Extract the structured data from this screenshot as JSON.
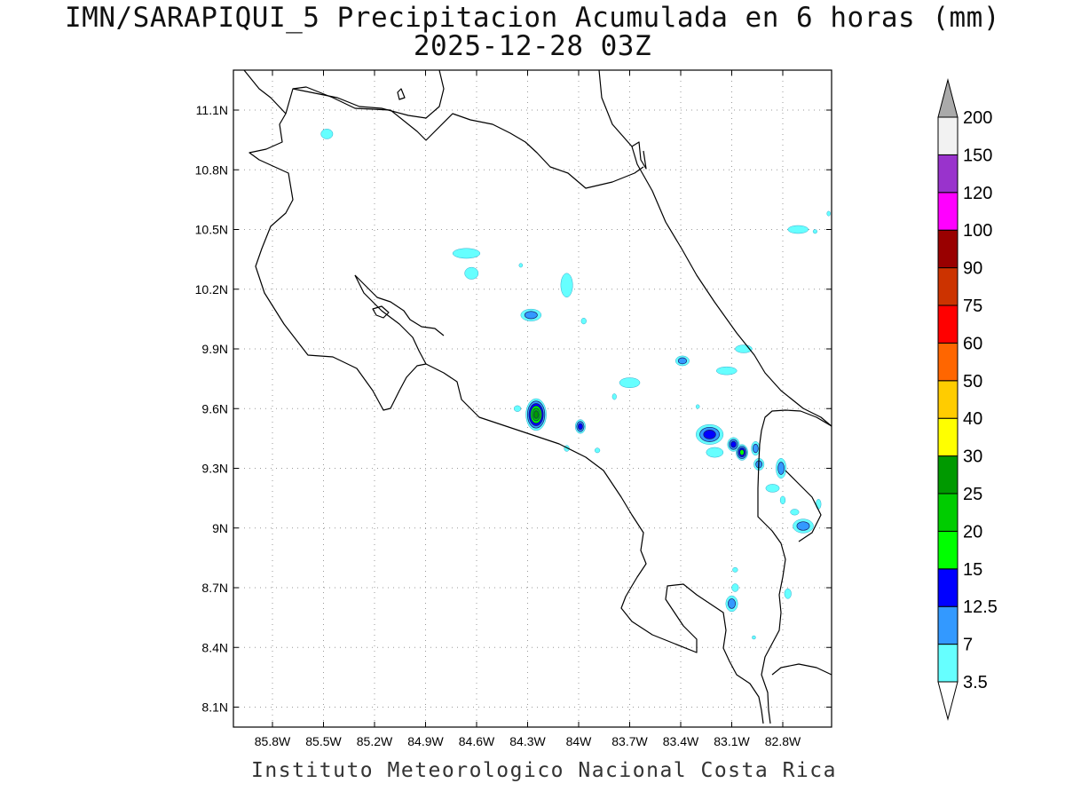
{
  "title": {
    "line1": "IMN/SARAPIQUI_5 Precipitacion Acumulada en 6 horas (mm)",
    "line2": "2025-12-28 03Z"
  },
  "credit": "Instituto Meteorologico Nacional Costa Rica",
  "map": {
    "lon_range": [
      -86.0,
      -83.1
    ],
    "lat_range": [
      8.0,
      11.3
    ],
    "x_ticks": [
      {
        "lon": -85.8,
        "label": "85.8W"
      },
      {
        "lon": -85.5,
        "label": "85.5W"
      },
      {
        "lon": -85.2,
        "label": "85.2W"
      },
      {
        "lon": -84.9,
        "label": "84.9W"
      },
      {
        "lon": -84.6,
        "label": "84.6W"
      },
      {
        "lon": -84.3,
        "label": "84.3W"
      },
      {
        "lon": -84.0,
        "label": "84W"
      },
      {
        "lon": -83.7,
        "label": "83.7W"
      },
      {
        "lon": -83.4,
        "label": "83.4W"
      },
      {
        "lon": -83.1,
        "label": "83.1W"
      },
      {
        "lon": -82.8,
        "label": "82.8W"
      }
    ],
    "y_ticks": [
      {
        "lat": 11.1,
        "label": "11.1N"
      },
      {
        "lat": 10.8,
        "label": "10.8N"
      },
      {
        "lat": 10.5,
        "label": "10.5N"
      },
      {
        "lat": 10.2,
        "label": "10.2N"
      },
      {
        "lat": 9.9,
        "label": "9.9N"
      },
      {
        "lat": 9.6,
        "label": "9.6N"
      },
      {
        "lat": 9.3,
        "label": "9.3N"
      },
      {
        "lat": 9.0,
        "label": "9N"
      },
      {
        "lat": 8.7,
        "label": "8.7N"
      },
      {
        "lat": 8.4,
        "label": "8.4N"
      },
      {
        "lat": 8.1,
        "label": "8.1N"
      }
    ],
    "grid": true
  },
  "colorbar": {
    "labels": [
      "3.5",
      "7",
      "12.5",
      "15",
      "20",
      "25",
      "30",
      "40",
      "50",
      "60",
      "75",
      "90",
      "100",
      "120",
      "150",
      "200"
    ],
    "colors": [
      "#66ffff",
      "#3399ff",
      "#0000ff",
      "#00ff00",
      "#00cc00",
      "#009900",
      "#ffff00",
      "#ffcc00",
      "#ff6600",
      "#ff0000",
      "#cc3300",
      "#990000",
      "#ff00ff",
      "#9933cc",
      "#f2f2f2"
    ],
    "over_color": "#aaaaaa",
    "under_color": "#ffffff"
  },
  "precip_cells": [
    {
      "lon": -85.48,
      "lat": 10.98,
      "rx": 0.035,
      "ry": 0.025,
      "level": 1
    },
    {
      "lon": -84.66,
      "lat": 10.38,
      "rx": 0.08,
      "ry": 0.025,
      "level": 1
    },
    {
      "lon": -84.63,
      "lat": 10.28,
      "rx": 0.04,
      "ry": 0.03,
      "level": 1
    },
    {
      "lon": -84.28,
      "lat": 10.07,
      "rx": 0.06,
      "ry": 0.03,
      "level": 2
    },
    {
      "lon": -84.07,
      "lat": 10.22,
      "rx": 0.035,
      "ry": 0.06,
      "level": 1
    },
    {
      "lon": -83.97,
      "lat": 10.04,
      "rx": 0.015,
      "ry": 0.015,
      "level": 1
    },
    {
      "lon": -84.34,
      "lat": 10.32,
      "rx": 0.01,
      "ry": 0.01,
      "level": 1
    },
    {
      "lon": -84.25,
      "lat": 9.57,
      "rx": 0.06,
      "ry": 0.08,
      "level": 6
    },
    {
      "lon": -84.36,
      "lat": 9.6,
      "rx": 0.02,
      "ry": 0.015,
      "level": 1
    },
    {
      "lon": -84.07,
      "lat": 9.4,
      "rx": 0.015,
      "ry": 0.015,
      "level": 1
    },
    {
      "lon": -83.99,
      "lat": 9.51,
      "rx": 0.03,
      "ry": 0.035,
      "level": 3
    },
    {
      "lon": -83.89,
      "lat": 9.39,
      "rx": 0.015,
      "ry": 0.012,
      "level": 1
    },
    {
      "lon": -83.7,
      "lat": 9.73,
      "rx": 0.06,
      "ry": 0.025,
      "level": 1
    },
    {
      "lon": -83.79,
      "lat": 9.66,
      "rx": 0.012,
      "ry": 0.015,
      "level": 1
    },
    {
      "lon": -83.39,
      "lat": 9.84,
      "rx": 0.04,
      "ry": 0.025,
      "level": 2
    },
    {
      "lon": -83.13,
      "lat": 9.79,
      "rx": 0.06,
      "ry": 0.02,
      "level": 1
    },
    {
      "lon": -83.03,
      "lat": 9.9,
      "rx": 0.05,
      "ry": 0.02,
      "level": 1
    },
    {
      "lon": -83.3,
      "lat": 9.61,
      "rx": 0.01,
      "ry": 0.01,
      "level": 1
    },
    {
      "lon": -83.23,
      "lat": 9.47,
      "rx": 0.08,
      "ry": 0.05,
      "level": 3
    },
    {
      "lon": -83.2,
      "lat": 9.38,
      "rx": 0.05,
      "ry": 0.025,
      "level": 1
    },
    {
      "lon": -83.09,
      "lat": 9.42,
      "rx": 0.035,
      "ry": 0.035,
      "level": 3
    },
    {
      "lon": -83.04,
      "lat": 9.38,
      "rx": 0.035,
      "ry": 0.04,
      "level": 4
    },
    {
      "lon": -82.96,
      "lat": 9.4,
      "rx": 0.025,
      "ry": 0.035,
      "level": 2
    },
    {
      "lon": -82.94,
      "lat": 9.32,
      "rx": 0.03,
      "ry": 0.03,
      "level": 2
    },
    {
      "lon": -82.81,
      "lat": 9.3,
      "rx": 0.03,
      "ry": 0.05,
      "level": 2
    },
    {
      "lon": -82.86,
      "lat": 9.2,
      "rx": 0.04,
      "ry": 0.02,
      "level": 1
    },
    {
      "lon": -82.8,
      "lat": 9.14,
      "rx": 0.015,
      "ry": 0.02,
      "level": 1
    },
    {
      "lon": -82.73,
      "lat": 9.08,
      "rx": 0.025,
      "ry": 0.015,
      "level": 1
    },
    {
      "lon": -82.68,
      "lat": 9.01,
      "rx": 0.06,
      "ry": 0.035,
      "level": 2
    },
    {
      "lon": -82.59,
      "lat": 9.12,
      "rx": 0.015,
      "ry": 0.025,
      "level": 1
    },
    {
      "lon": -83.1,
      "lat": 8.62,
      "rx": 0.035,
      "ry": 0.04,
      "level": 2
    },
    {
      "lon": -83.08,
      "lat": 8.7,
      "rx": 0.02,
      "ry": 0.02,
      "level": 1
    },
    {
      "lon": -83.08,
      "lat": 8.79,
      "rx": 0.015,
      "ry": 0.012,
      "level": 1
    },
    {
      "lon": -82.77,
      "lat": 8.67,
      "rx": 0.02,
      "ry": 0.025,
      "level": 1
    },
    {
      "lon": -82.97,
      "lat": 8.45,
      "rx": 0.008,
      "ry": 0.008,
      "level": 1
    },
    {
      "lon": -82.71,
      "lat": 10.5,
      "rx": 0.06,
      "ry": 0.02,
      "level": 1
    },
    {
      "lon": -82.61,
      "lat": 10.49,
      "rx": 0.012,
      "ry": 0.01,
      "level": 1
    },
    {
      "lon": -82.53,
      "lat": 10.58,
      "rx": 0.008,
      "ry": 0.012,
      "level": 1
    }
  ]
}
